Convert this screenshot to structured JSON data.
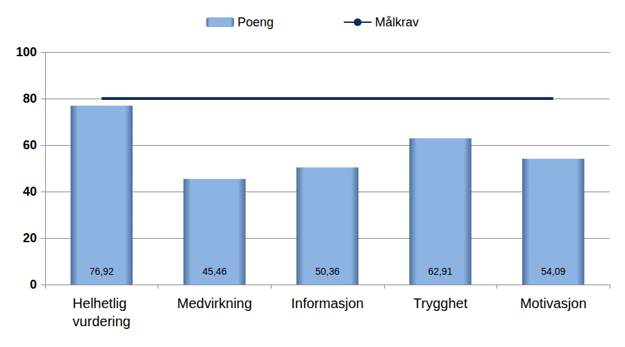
{
  "chart_data": {
    "type": "bar",
    "categories": [
      "Helhetlig vurdering",
      "Medvirkning",
      "Informasjon",
      "Trygghet",
      "Motivasjon"
    ],
    "series": [
      {
        "name": "Poeng",
        "type": "bar",
        "color": "#8db3e2",
        "values": [
          76.92,
          45.46,
          50.36,
          62.91,
          54.09
        ],
        "value_labels": [
          "76,92",
          "45,46",
          "50,36",
          "62,91",
          "54,09"
        ]
      },
      {
        "name": "Målkrav",
        "type": "line",
        "color": "#0f2b5f",
        "values": [
          80,
          80,
          80,
          80,
          80
        ]
      }
    ],
    "ylim": [
      0,
      100
    ],
    "yticks": [
      0,
      20,
      40,
      60,
      80,
      100
    ],
    "grid": true,
    "legend": "top",
    "data_labels": true
  }
}
